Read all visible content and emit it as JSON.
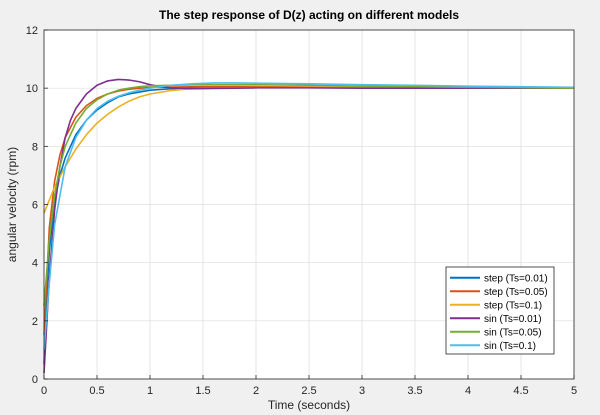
{
  "chart_data": {
    "type": "line",
    "title": "The step response of D(z) acting on different models",
    "xlabel": "Time (seconds)",
    "ylabel": "angular velocity (rpm)",
    "xlim": [
      0,
      5
    ],
    "ylim": [
      0,
      12
    ],
    "xticks": [
      0,
      0.5,
      1,
      1.5,
      2,
      2.5,
      3,
      3.5,
      4,
      4.5,
      5
    ],
    "yticks": [
      0,
      2,
      4,
      6,
      8,
      10,
      12
    ],
    "grid": true,
    "legend_position": "bottom-right",
    "series": [
      {
        "name": "step (Ts=0.01)",
        "color": "#0072bd",
        "x": [
          0,
          0.02,
          0.05,
          0.1,
          0.15,
          0.2,
          0.3,
          0.4,
          0.5,
          0.6,
          0.7,
          0.8,
          1.0,
          1.2,
          1.5,
          2.0,
          3.0,
          4.0,
          5.0
        ],
        "y": [
          0.5,
          2.5,
          4.4,
          6.1,
          7.0,
          7.6,
          8.4,
          8.9,
          9.25,
          9.5,
          9.7,
          9.8,
          9.93,
          9.98,
          10.01,
          10.03,
          10.02,
          10.01,
          10.0
        ]
      },
      {
        "name": "step (Ts=0.05)",
        "color": "#d95319",
        "x": [
          0,
          0.05,
          0.1,
          0.15,
          0.2,
          0.3,
          0.4,
          0.5,
          0.6,
          0.7,
          0.8,
          0.9,
          1.0,
          1.2,
          1.5,
          2.0,
          3.0,
          4.0,
          5.0
        ],
        "y": [
          1.5,
          5.2,
          6.8,
          7.7,
          8.3,
          9.0,
          9.4,
          9.65,
          9.8,
          9.9,
          9.96,
          10.0,
          10.02,
          10.04,
          10.05,
          10.05,
          10.03,
          10.01,
          10.0
        ]
      },
      {
        "name": "step (Ts=0.1)",
        "color": "#edb120",
        "x": [
          0,
          0.1,
          0.2,
          0.3,
          0.4,
          0.5,
          0.6,
          0.7,
          0.8,
          0.9,
          1.0,
          1.2,
          1.4,
          1.6,
          2.0,
          3.0,
          4.0,
          5.0
        ],
        "y": [
          5.7,
          6.6,
          7.3,
          7.9,
          8.4,
          8.8,
          9.1,
          9.35,
          9.55,
          9.7,
          9.8,
          9.92,
          9.98,
          10.0,
          10.02,
          10.03,
          10.01,
          10.0
        ]
      },
      {
        "name": "sin (Ts=0.01)",
        "color": "#7e2f8e",
        "x": [
          0,
          0.02,
          0.05,
          0.1,
          0.15,
          0.2,
          0.25,
          0.3,
          0.4,
          0.5,
          0.6,
          0.7,
          0.8,
          0.9,
          1.0,
          1.1,
          1.2,
          1.4,
          1.6,
          2.0,
          2.5,
          3.0,
          4.0,
          5.0
        ],
        "y": [
          0.2,
          1.5,
          3.5,
          5.8,
          7.3,
          8.3,
          8.9,
          9.3,
          9.8,
          10.1,
          10.25,
          10.3,
          10.28,
          10.22,
          10.12,
          10.05,
          10.01,
          9.98,
          9.99,
          10.01,
          10.01,
          10.0,
          10.0,
          10.0
        ]
      },
      {
        "name": "sin (Ts=0.05)",
        "color": "#77ac30",
        "x": [
          0,
          0.05,
          0.1,
          0.15,
          0.2,
          0.3,
          0.4,
          0.5,
          0.6,
          0.7,
          0.8,
          0.9,
          1.0,
          1.2,
          1.5,
          2.0,
          2.5,
          3.0,
          4.0,
          5.0
        ],
        "y": [
          2.5,
          4.8,
          6.3,
          7.3,
          8.0,
          8.8,
          9.3,
          9.6,
          9.8,
          9.93,
          10.0,
          10.05,
          10.08,
          10.1,
          10.12,
          10.12,
          10.1,
          10.07,
          10.03,
          10.0
        ]
      },
      {
        "name": "sin (Ts=0.1)",
        "color": "#4dbeee",
        "x": [
          0,
          0.05,
          0.1,
          0.2,
          0.3,
          0.4,
          0.5,
          0.6,
          0.7,
          0.8,
          0.9,
          1.0,
          1.2,
          1.4,
          1.6,
          1.8,
          2.0,
          2.5,
          3.0,
          3.5,
          4.0,
          4.5,
          5.0
        ],
        "y": [
          1.0,
          3.3,
          5.3,
          7.3,
          8.3,
          8.9,
          9.3,
          9.55,
          9.72,
          9.84,
          9.93,
          10.0,
          10.1,
          10.15,
          10.18,
          10.18,
          10.17,
          10.15,
          10.12,
          10.1,
          10.07,
          10.05,
          10.03
        ]
      }
    ]
  }
}
